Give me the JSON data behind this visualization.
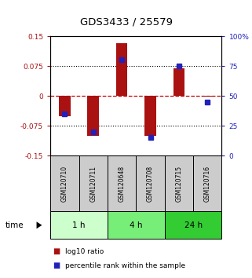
{
  "title": "GDS3433 / 25579",
  "samples": [
    "GSM120710",
    "GSM120711",
    "GSM120648",
    "GSM120708",
    "GSM120715",
    "GSM120716"
  ],
  "log10_ratio": [
    -0.05,
    -0.1,
    0.133,
    -0.1,
    0.07,
    -0.002
  ],
  "percentile_rank": [
    35,
    20,
    80,
    15,
    75,
    45
  ],
  "ylim_left": [
    -0.15,
    0.15
  ],
  "ylim_right": [
    0,
    100
  ],
  "yticks_left": [
    -0.15,
    -0.075,
    0,
    0.075,
    0.15
  ],
  "ytick_labels_left": [
    "-0.15",
    "-0.075",
    "0",
    "0.075",
    "0.15"
  ],
  "ytick_labels_right": [
    "0",
    "25",
    "50",
    "75",
    "100%"
  ],
  "bar_color": "#AA1111",
  "dot_color": "#2222BB",
  "plot_bg": "#ffffff",
  "time_groups": [
    {
      "label": "1 h",
      "cols": [
        0,
        1
      ],
      "color": "#ccffcc"
    },
    {
      "label": "4 h",
      "cols": [
        2,
        3
      ],
      "color": "#77ee77"
    },
    {
      "label": "24 h",
      "cols": [
        4,
        5
      ],
      "color": "#33cc33"
    }
  ],
  "legend": [
    {
      "label": "log10 ratio",
      "color": "#AA1111"
    },
    {
      "label": "percentile rank within the sample",
      "color": "#2222BB"
    }
  ],
  "zero_line_color": "#CC0000",
  "col_bg": "#cccccc"
}
